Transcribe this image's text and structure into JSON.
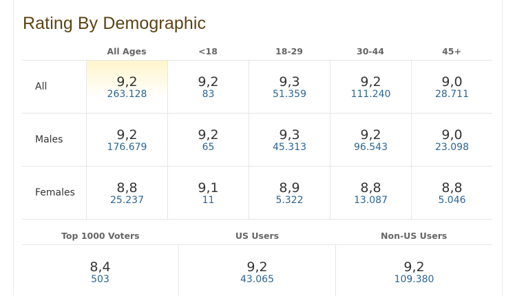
{
  "title": "Rating By Demographic",
  "columns": [
    "All Ages",
    "<18",
    "18-29",
    "30-44",
    "45+"
  ],
  "rows": [
    {
      "label": "All",
      "cells": [
        {
          "rating": "9,2",
          "votes": "263.128"
        },
        {
          "rating": "9,2",
          "votes": "83"
        },
        {
          "rating": "9,3",
          "votes": "51.359"
        },
        {
          "rating": "9,2",
          "votes": "111.240"
        },
        {
          "rating": "9,0",
          "votes": "28.711"
        }
      ]
    },
    {
      "label": "Males",
      "cells": [
        {
          "rating": "9,2",
          "votes": "176.679"
        },
        {
          "rating": "9,2",
          "votes": "65"
        },
        {
          "rating": "9,3",
          "votes": "45.313"
        },
        {
          "rating": "9,2",
          "votes": "96.543"
        },
        {
          "rating": "9,0",
          "votes": "23.098"
        }
      ]
    },
    {
      "label": "Females",
      "cells": [
        {
          "rating": "8,8",
          "votes": "25.237"
        },
        {
          "rating": "9,1",
          "votes": "11"
        },
        {
          "rating": "8,9",
          "votes": "5.322"
        },
        {
          "rating": "8,8",
          "votes": "13.087"
        },
        {
          "rating": "8,8",
          "votes": "5.046"
        }
      ]
    }
  ],
  "bottom": {
    "columns": [
      "Top 1000 Voters",
      "US Users",
      "Non-US Users"
    ],
    "cells": [
      {
        "rating": "8,4",
        "votes": "503"
      },
      {
        "rating": "9,2",
        "votes": "43.065"
      },
      {
        "rating": "9,2",
        "votes": "109.380"
      }
    ]
  },
  "colors": {
    "title": "#5c4313",
    "link": "#2a6496",
    "highlight": "#fff5cc"
  }
}
